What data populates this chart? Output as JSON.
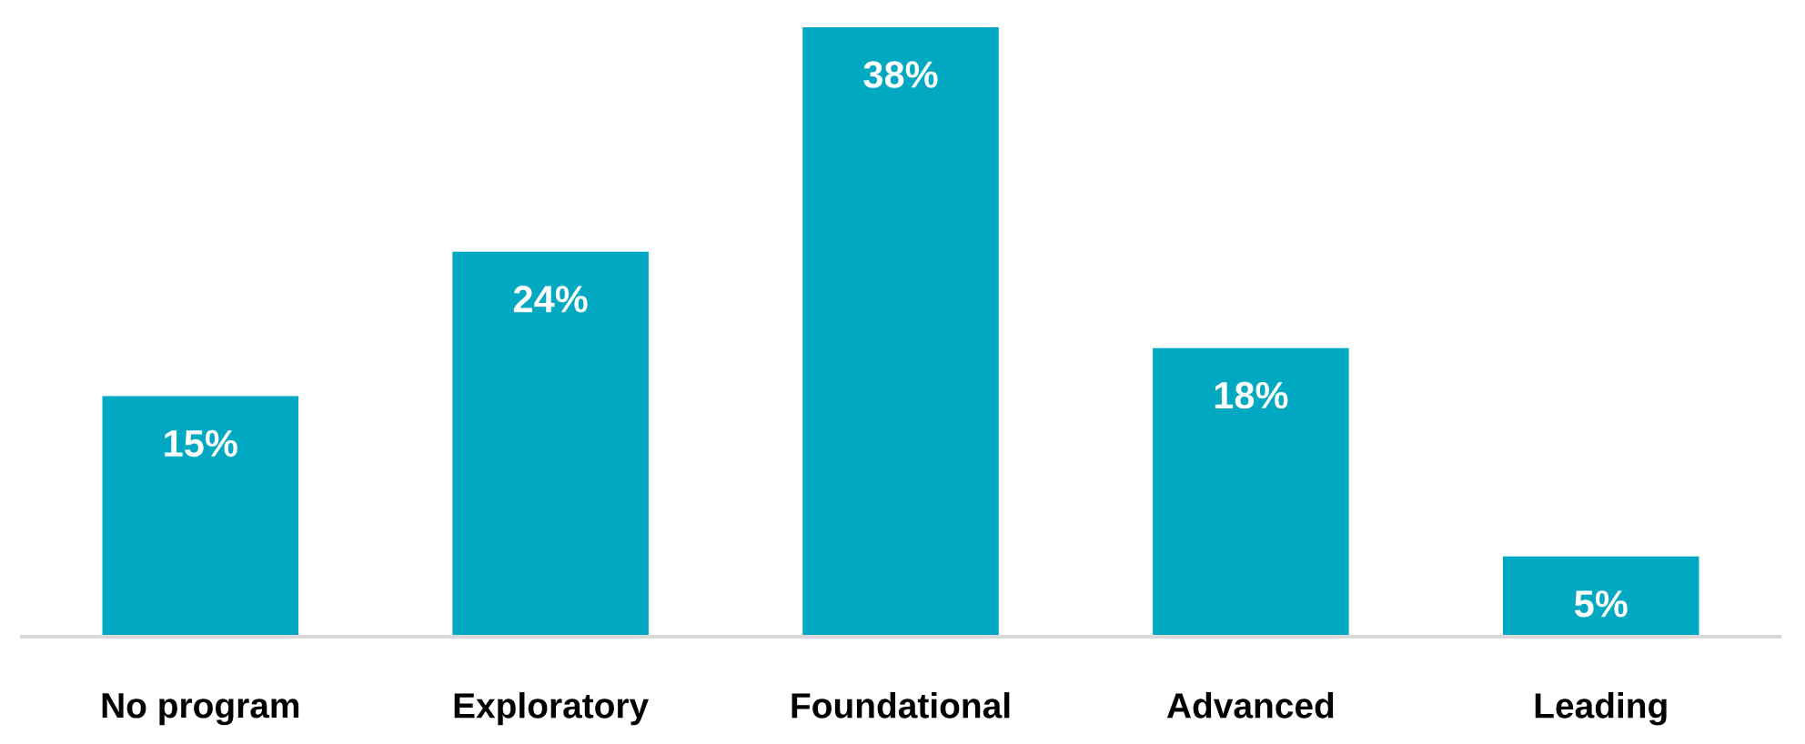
{
  "chart_data": {
    "type": "bar",
    "categories": [
      "No program",
      "Exploratory",
      "Foundational",
      "Advanced",
      "Leading"
    ],
    "values": [
      15,
      24,
      38,
      18,
      5
    ],
    "value_labels": [
      "15%",
      "24%",
      "38%",
      "18%",
      "5%"
    ],
    "color": "#00a9c1",
    "grid": false,
    "legend": false
  }
}
